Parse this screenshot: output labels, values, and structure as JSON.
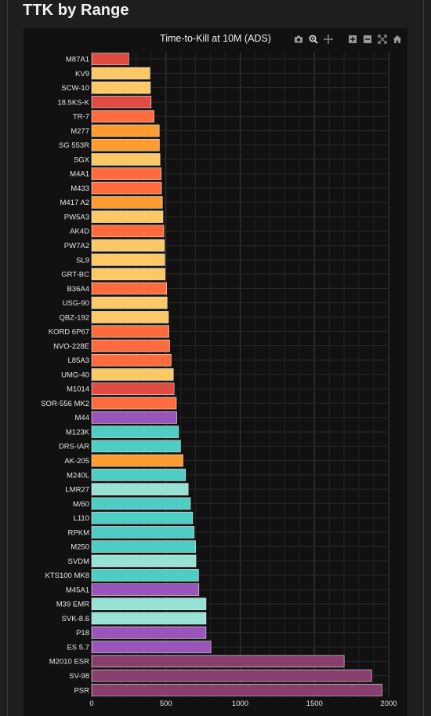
{
  "page": {
    "title": "TTK by Range"
  },
  "toolbar": {
    "buttons": [
      {
        "name": "camera-icon"
      },
      {
        "name": "zoom-icon"
      },
      {
        "name": "pan-icon"
      },
      {
        "name": "zoom-in-icon"
      },
      {
        "name": "zoom-out-icon"
      },
      {
        "name": "autoscale-icon"
      },
      {
        "name": "home-icon"
      }
    ]
  },
  "chart_data": {
    "type": "bar",
    "orientation": "horizontal",
    "title": "Time-to-Kill at 10M (ADS)",
    "xlabel": "",
    "ylabel": "",
    "xlim": [
      0,
      2000
    ],
    "xticks": [
      "0",
      "500",
      "1000",
      "1500",
      "2000"
    ],
    "grid": true,
    "categories": [
      "M87A1",
      "KV9",
      "SCW-10",
      "18.5KS-K",
      "TR-7",
      "M277",
      "SG 553R",
      "SGX",
      "M4A1",
      "M433",
      "M417 A2",
      "PW5A3",
      "AK4D",
      "PW7A2",
      "SL9",
      "GRT-BC",
      "B36A4",
      "USG-90",
      "QBZ-192",
      "KORD 6P67",
      "NVO-228E",
      "L85A3",
      "UMG-40",
      "M1014",
      "SOR-556 MK2",
      "M44",
      "M123K",
      "DRS-IAR",
      "AK-205",
      "M240L",
      "LMR27",
      "M/60",
      "L110",
      "RPKM",
      "M250",
      "SVDM",
      "KTS100 MK8",
      "M45A1",
      "M39 EMR",
      "SVK-8.6",
      "P18",
      "ES 5.7",
      "M2010 ESR",
      "SV-98",
      "PSR"
    ],
    "values": [
      250,
      392,
      395,
      400,
      420,
      455,
      456,
      460,
      468,
      470,
      476,
      480,
      486,
      490,
      492,
      494,
      505,
      508,
      517,
      520,
      525,
      535,
      550,
      555,
      570,
      573,
      585,
      598,
      615,
      632,
      650,
      665,
      680,
      690,
      700,
      702,
      720,
      722,
      770,
      770,
      770,
      803,
      1700,
      1885,
      1955
    ],
    "colors": [
      "#e14b42",
      "#fdc866",
      "#fdc866",
      "#e14b42",
      "#ff6b3c",
      "#ff9b2f",
      "#ff9b2f",
      "#fdc866",
      "#ff6b3c",
      "#ff6b3c",
      "#ff9b2f",
      "#fdc866",
      "#ff6b3c",
      "#fdc866",
      "#fdc866",
      "#fdc866",
      "#ff6b3c",
      "#fdc866",
      "#fdc866",
      "#ff6b3c",
      "#ff6b3c",
      "#ff6b3c",
      "#fdc866",
      "#e14b42",
      "#ff6b3c",
      "#9a55ba",
      "#4ecdc4",
      "#4ecdc4",
      "#ff9b2f",
      "#4ecdc4",
      "#96e2d4",
      "#4ecdc4",
      "#4ecdc4",
      "#4ecdc4",
      "#4ecdc4",
      "#96e2d4",
      "#4ecdc4",
      "#9a55ba",
      "#96e2d4",
      "#96e2d4",
      "#9a55ba",
      "#9a55ba",
      "#8a3e6e",
      "#8a3e6e",
      "#8a3e6e"
    ]
  }
}
